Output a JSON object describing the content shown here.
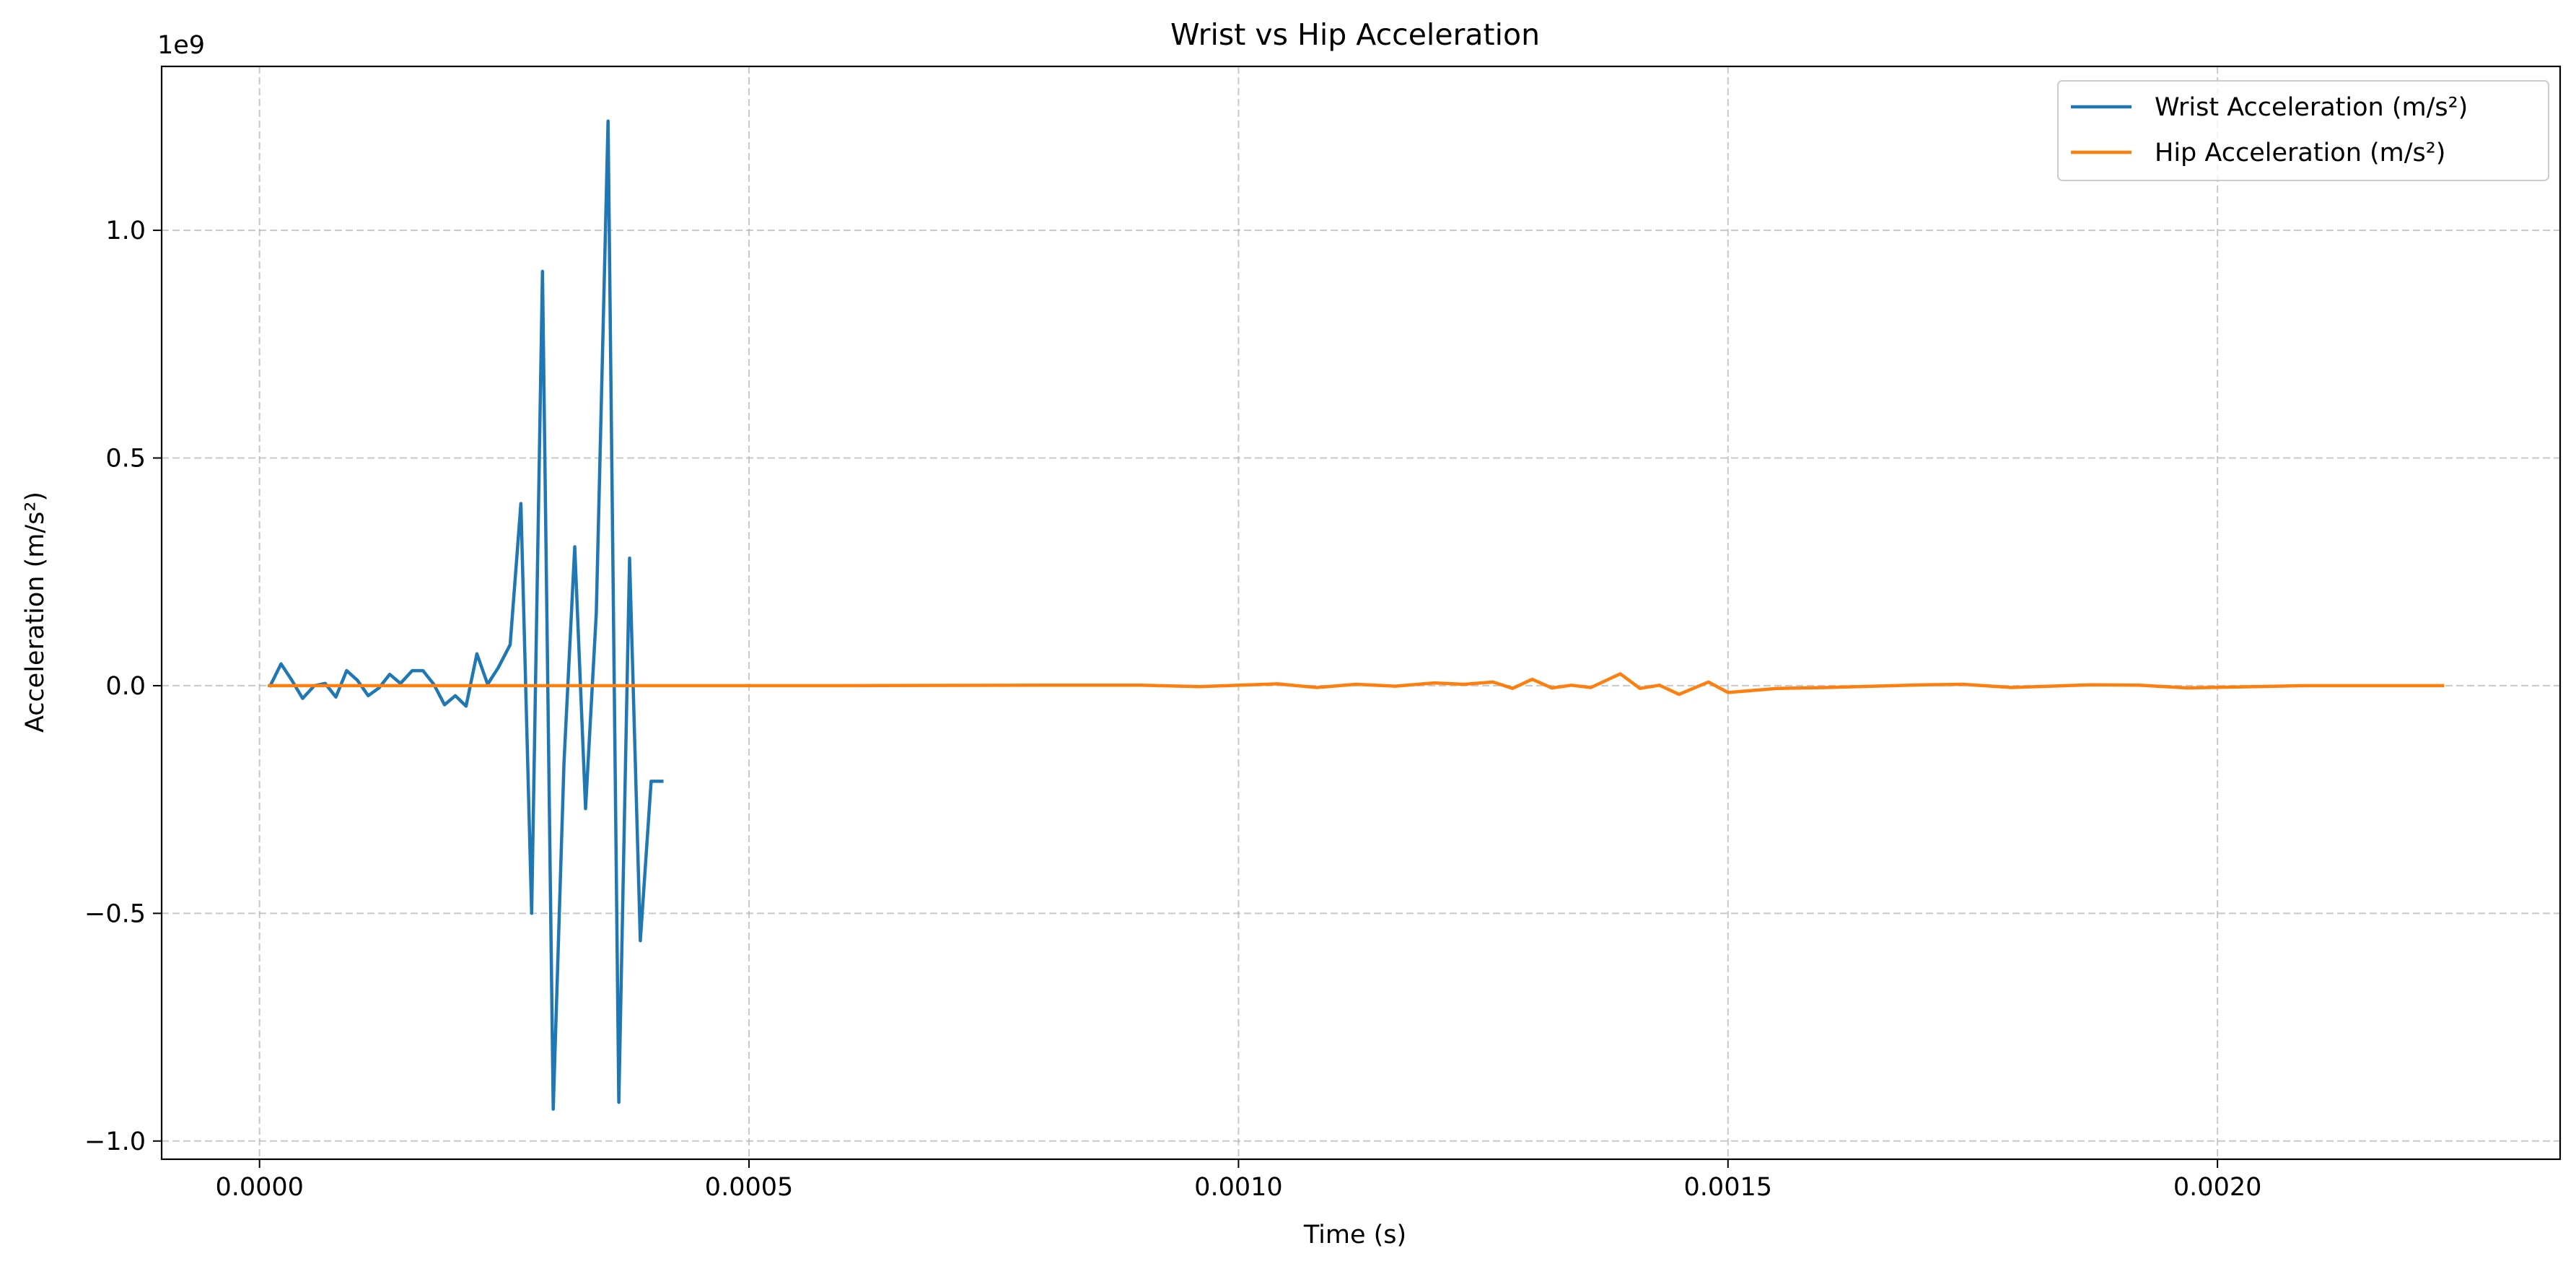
{
  "chart_data": {
    "type": "line",
    "title": "Wrist vs Hip Acceleration",
    "xlabel": "Time (s)",
    "ylabel": "Acceleration (m/s²)",
    "y_offset_text": "1e9",
    "y_scale": 1000000000,
    "xlim": [
      -0.0001,
      0.00235
    ],
    "ylim": [
      -1.04,
      1.36
    ],
    "x_ticks": [
      0.0,
      0.0005,
      0.001,
      0.0015,
      0.002
    ],
    "x_tick_labels": [
      "0.0000",
      "0.0005",
      "0.0010",
      "0.0015",
      "0.0020"
    ],
    "y_ticks": [
      -1.0,
      -0.5,
      0.0,
      0.5,
      1.0
    ],
    "y_tick_labels": [
      "−1.0",
      "−0.5",
      "0.0",
      "0.5",
      "1.0"
    ],
    "grid": true,
    "legend_position": "top-right",
    "series": [
      {
        "name": "Wrist Acceleration (m/s²)",
        "color": "#1f77b4",
        "x": [
          1.1e-05,
          2.2e-05,
          3.3e-05,
          4.4e-05,
          5.6e-05,
          6.7e-05,
          7.8e-05,
          8.9e-05,
          0.0001,
          0.000111,
          0.000122,
          0.000133,
          0.000144,
          0.000156,
          0.000167,
          0.000178,
          0.000189,
          0.0002,
          0.000211,
          0.000222,
          0.000233,
          0.000244,
          0.000256,
          0.000267,
          0.000278,
          0.000289,
          0.0003,
          0.000311,
          0.000322,
          0.000333,
          0.000344,
          0.000356,
          0.000367,
          0.000378,
          0.000389,
          0.0004,
          0.000411
        ],
        "y": [
          0.0,
          0.048,
          0.012,
          -0.028,
          0.0,
          0.005,
          -0.025,
          0.033,
          0.012,
          -0.022,
          -0.005,
          0.025,
          0.005,
          0.033,
          0.033,
          0.003,
          -0.042,
          -0.022,
          -0.045,
          0.07,
          0.003,
          0.04,
          0.09,
          0.4,
          -0.5,
          0.91,
          -0.93,
          -0.17,
          0.305,
          -0.27,
          0.16,
          1.24,
          -0.915,
          0.28,
          -0.56,
          -0.21,
          -0.21
        ]
      },
      {
        "name": "Hip Acceleration (m/s²)",
        "color": "#ff7f0e",
        "x": [
          1e-05,
          0.0002,
          0.0004,
          0.0006,
          0.0008,
          0.0009,
          0.00096,
          0.00104,
          0.00108,
          0.00112,
          0.00116,
          0.0012,
          0.00123,
          0.00126,
          0.00128,
          0.0013,
          0.00132,
          0.00134,
          0.00136,
          0.00139,
          0.00141,
          0.00143,
          0.00145,
          0.00148,
          0.0015,
          0.00155,
          0.0016,
          0.00165,
          0.0017,
          0.00174,
          0.00179,
          0.00187,
          0.00192,
          0.00197,
          0.00202,
          0.00209,
          0.00216,
          0.00223
        ],
        "y": [
          0.0,
          0.0,
          0.0,
          0.0,
          0.001,
          0.001,
          -0.002,
          0.004,
          -0.004,
          0.003,
          -0.001,
          0.006,
          0.003,
          0.008,
          -0.006,
          0.014,
          -0.005,
          0.001,
          -0.004,
          0.026,
          -0.006,
          0.001,
          -0.019,
          0.008,
          -0.015,
          -0.006,
          -0.004,
          -0.001,
          0.002,
          0.003,
          -0.004,
          0.002,
          0.001,
          -0.005,
          -0.003,
          0.0,
          0.0,
          0.0
        ]
      }
    ]
  }
}
